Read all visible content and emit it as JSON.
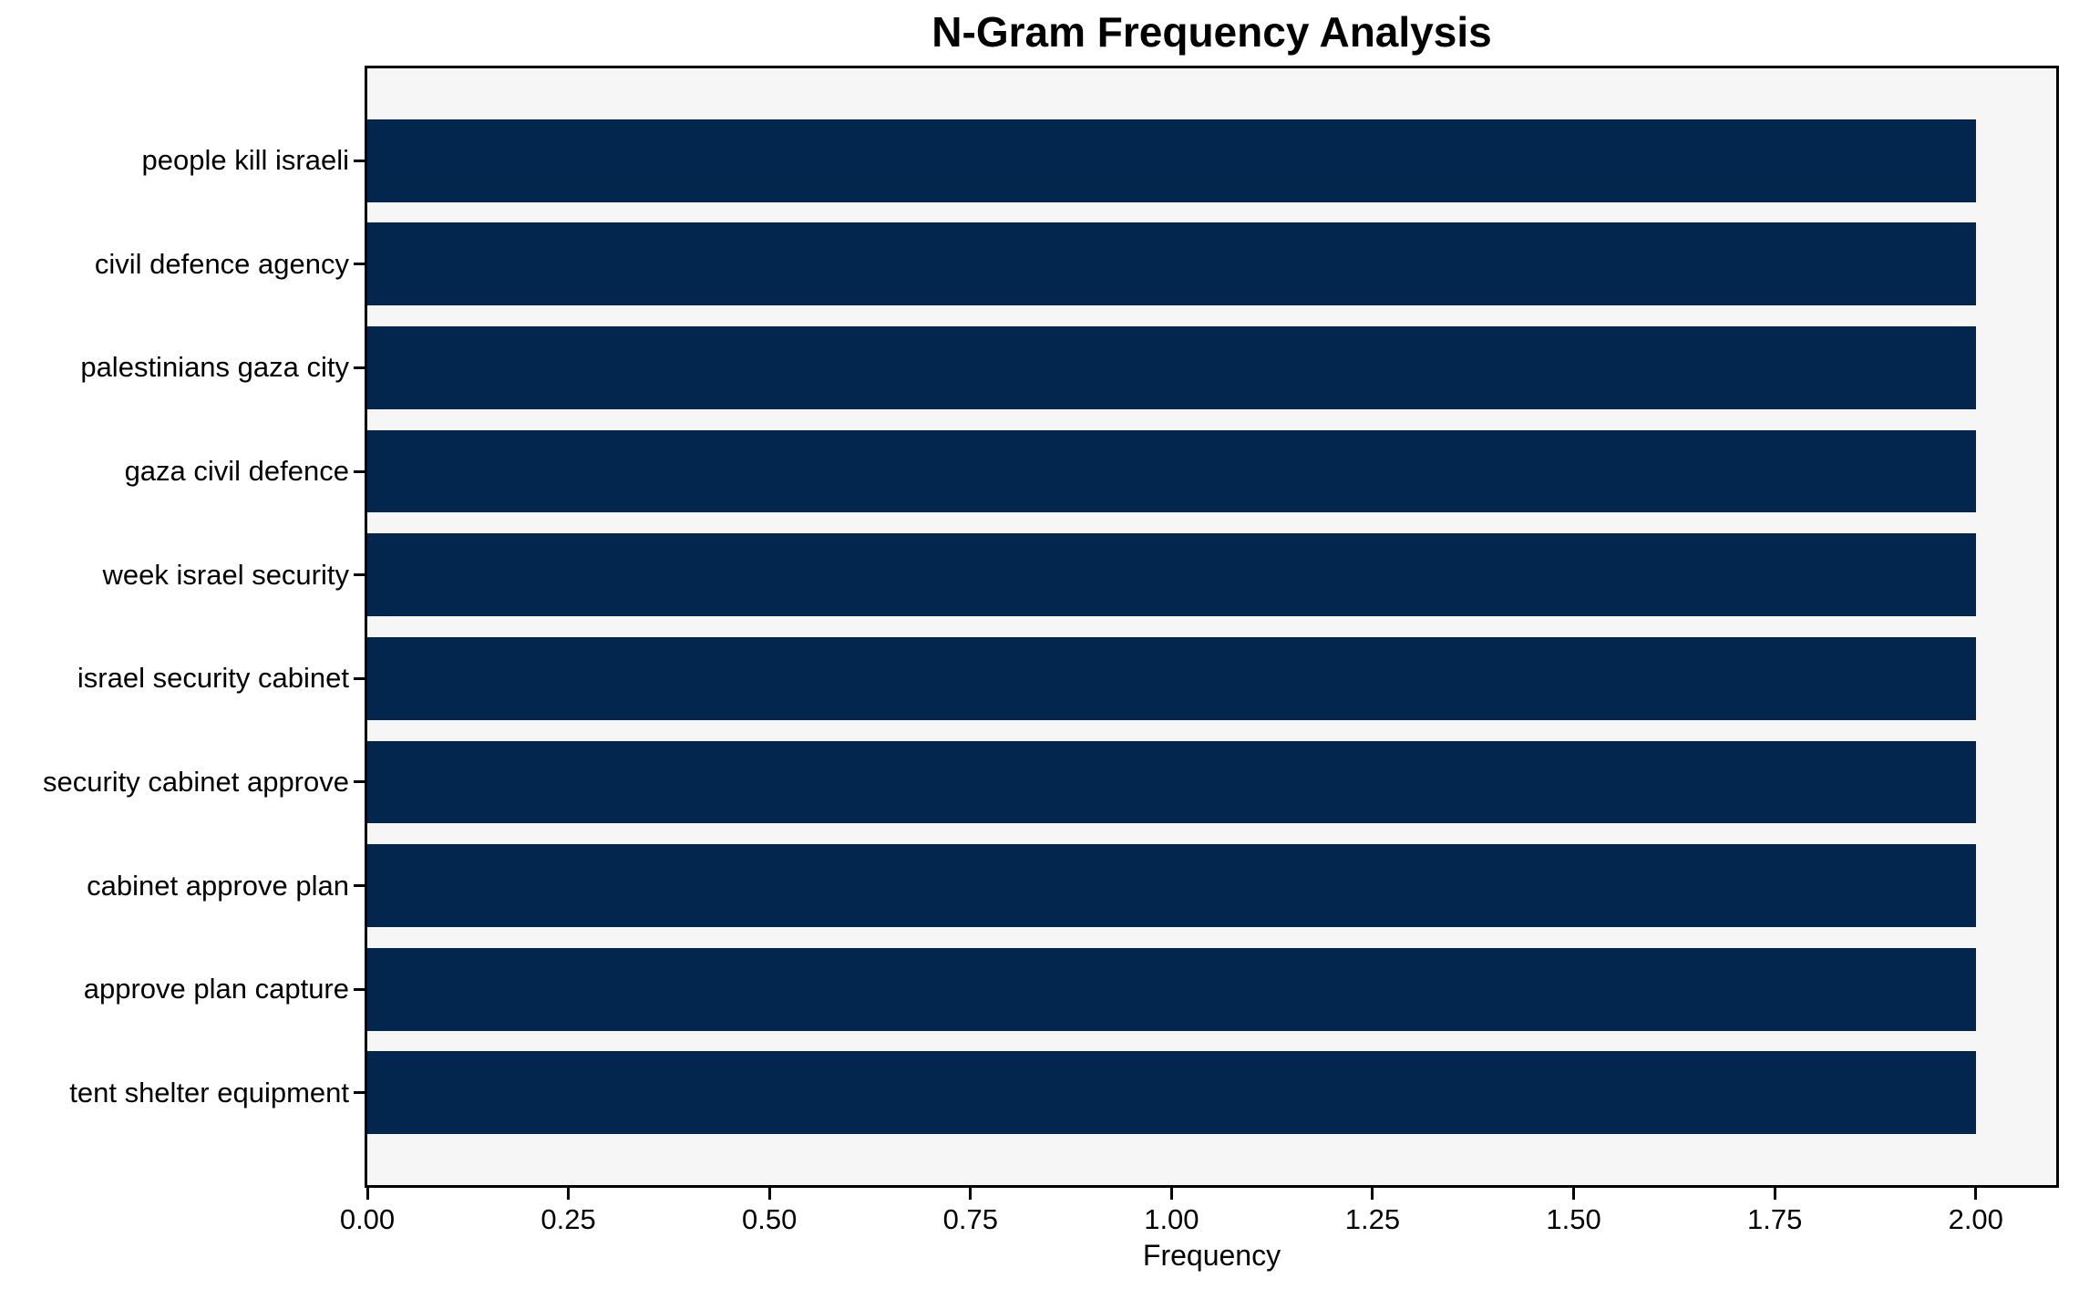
{
  "chart_data": {
    "type": "bar",
    "orientation": "horizontal",
    "title": "N-Gram Frequency Analysis",
    "xlabel": "Frequency",
    "ylabel": "",
    "categories": [
      "people kill israeli",
      "civil defence agency",
      "palestinians gaza city",
      "gaza civil defence",
      "week israel security",
      "israel security cabinet",
      "security cabinet approve",
      "cabinet approve plan",
      "approve plan capture",
      "tent shelter equipment"
    ],
    "values": [
      2,
      2,
      2,
      2,
      2,
      2,
      2,
      2,
      2,
      2
    ],
    "xlim": [
      0,
      2.1
    ],
    "xticks": [
      {
        "value": 0.0,
        "label": "0.00"
      },
      {
        "value": 0.25,
        "label": "0.25"
      },
      {
        "value": 0.5,
        "label": "0.50"
      },
      {
        "value": 0.75,
        "label": "0.75"
      },
      {
        "value": 1.0,
        "label": "1.00"
      },
      {
        "value": 1.25,
        "label": "1.25"
      },
      {
        "value": 1.5,
        "label": "1.50"
      },
      {
        "value": 1.75,
        "label": "1.75"
      },
      {
        "value": 2.0,
        "label": "2.00"
      }
    ],
    "grid": false,
    "legend": null,
    "colors": {
      "bar": "#02264e",
      "plot_background": "#f6f6f6",
      "figure_background": "#ffffff",
      "axis": "#000000",
      "text": "#000000"
    }
  }
}
